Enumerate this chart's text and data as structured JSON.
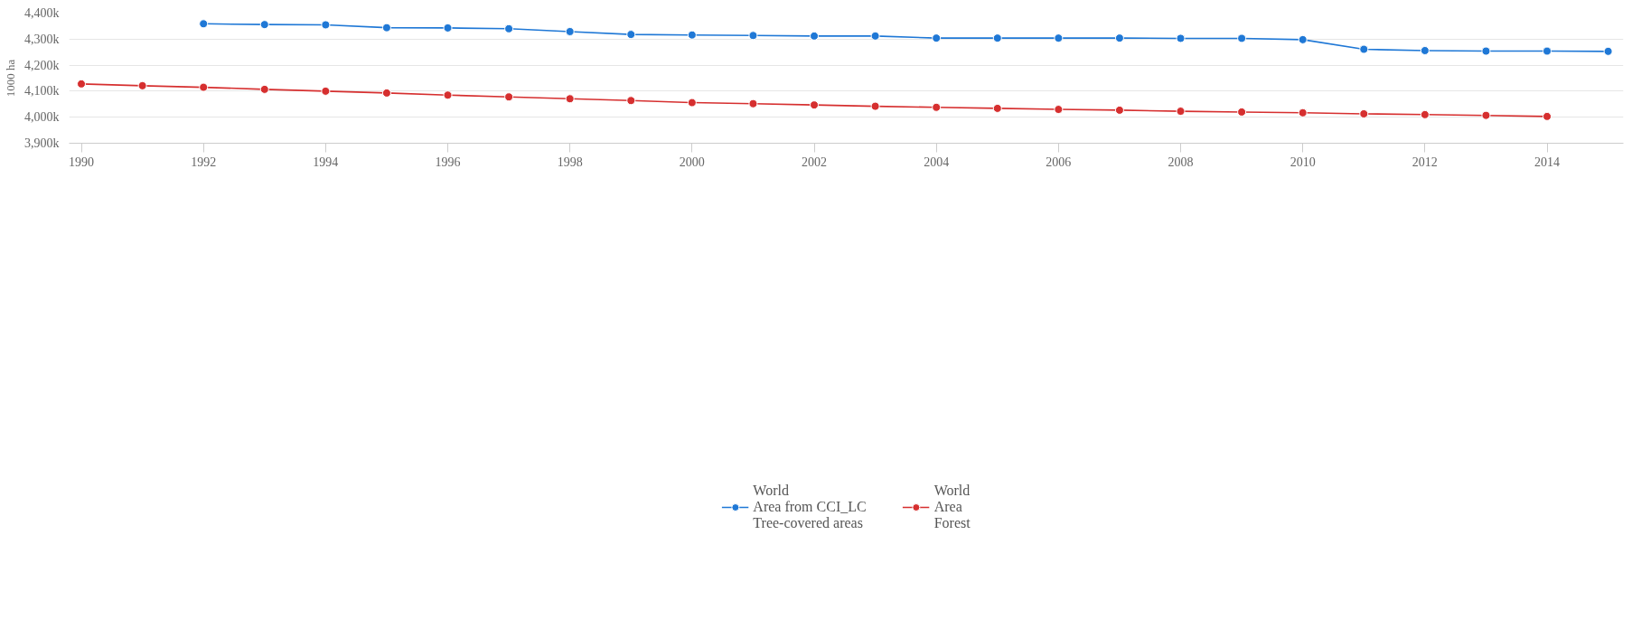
{
  "chart_data": {
    "type": "line",
    "ylabel": "1000 ha",
    "x": [
      1990,
      1991,
      1992,
      1993,
      1994,
      1995,
      1996,
      1997,
      1998,
      1999,
      2000,
      2001,
      2002,
      2003,
      2004,
      2005,
      2006,
      2007,
      2008,
      2009,
      2010,
      2011,
      2012,
      2013,
      2014,
      2015
    ],
    "series": [
      {
        "name": "World\nArea from CCI_LC\nTree-covered areas",
        "color": "#1f78d6",
        "values": [
          null,
          null,
          4359000,
          4356000,
          4355000,
          4344000,
          4343000,
          4340000,
          4329000,
          4318000,
          4316000,
          4314000,
          4312000,
          4312000,
          4304000,
          4304000,
          4304000,
          4304000,
          4303000,
          4303000,
          4298000,
          4261000,
          4256000,
          4254000,
          4254000,
          4253000
        ]
      },
      {
        "name": "World\nArea\nForest",
        "color": "#d62f2f",
        "values": [
          4128000,
          4121000,
          4115000,
          4107000,
          4100000,
          4093000,
          4085000,
          4078000,
          4071000,
          4064000,
          4056000,
          4052000,
          4047000,
          4042000,
          4038000,
          4034000,
          4030000,
          4027000,
          4023000,
          4020000,
          4017000,
          4013000,
          4010000,
          4007000,
          4003000,
          null
        ]
      }
    ],
    "xlim": [
      1989.8,
      2015.25
    ],
    "xticks": [
      1990,
      1992,
      1994,
      1996,
      1998,
      2000,
      2002,
      2004,
      2006,
      2008,
      2010,
      2012,
      2014
    ],
    "ylim": [
      3900000,
      4400000
    ],
    "yticks": [
      {
        "value": 3900000,
        "label": "3,900k"
      },
      {
        "value": 4000000,
        "label": "4,000k"
      },
      {
        "value": 4100000,
        "label": "4,100k"
      },
      {
        "value": 4200000,
        "label": "4,200k"
      },
      {
        "value": 4300000,
        "label": "4,300k"
      },
      {
        "value": 4400000,
        "label": "4,400k"
      }
    ],
    "grid": "y",
    "legend": "bottom",
    "marker": "circle",
    "line_style": "solid"
  }
}
